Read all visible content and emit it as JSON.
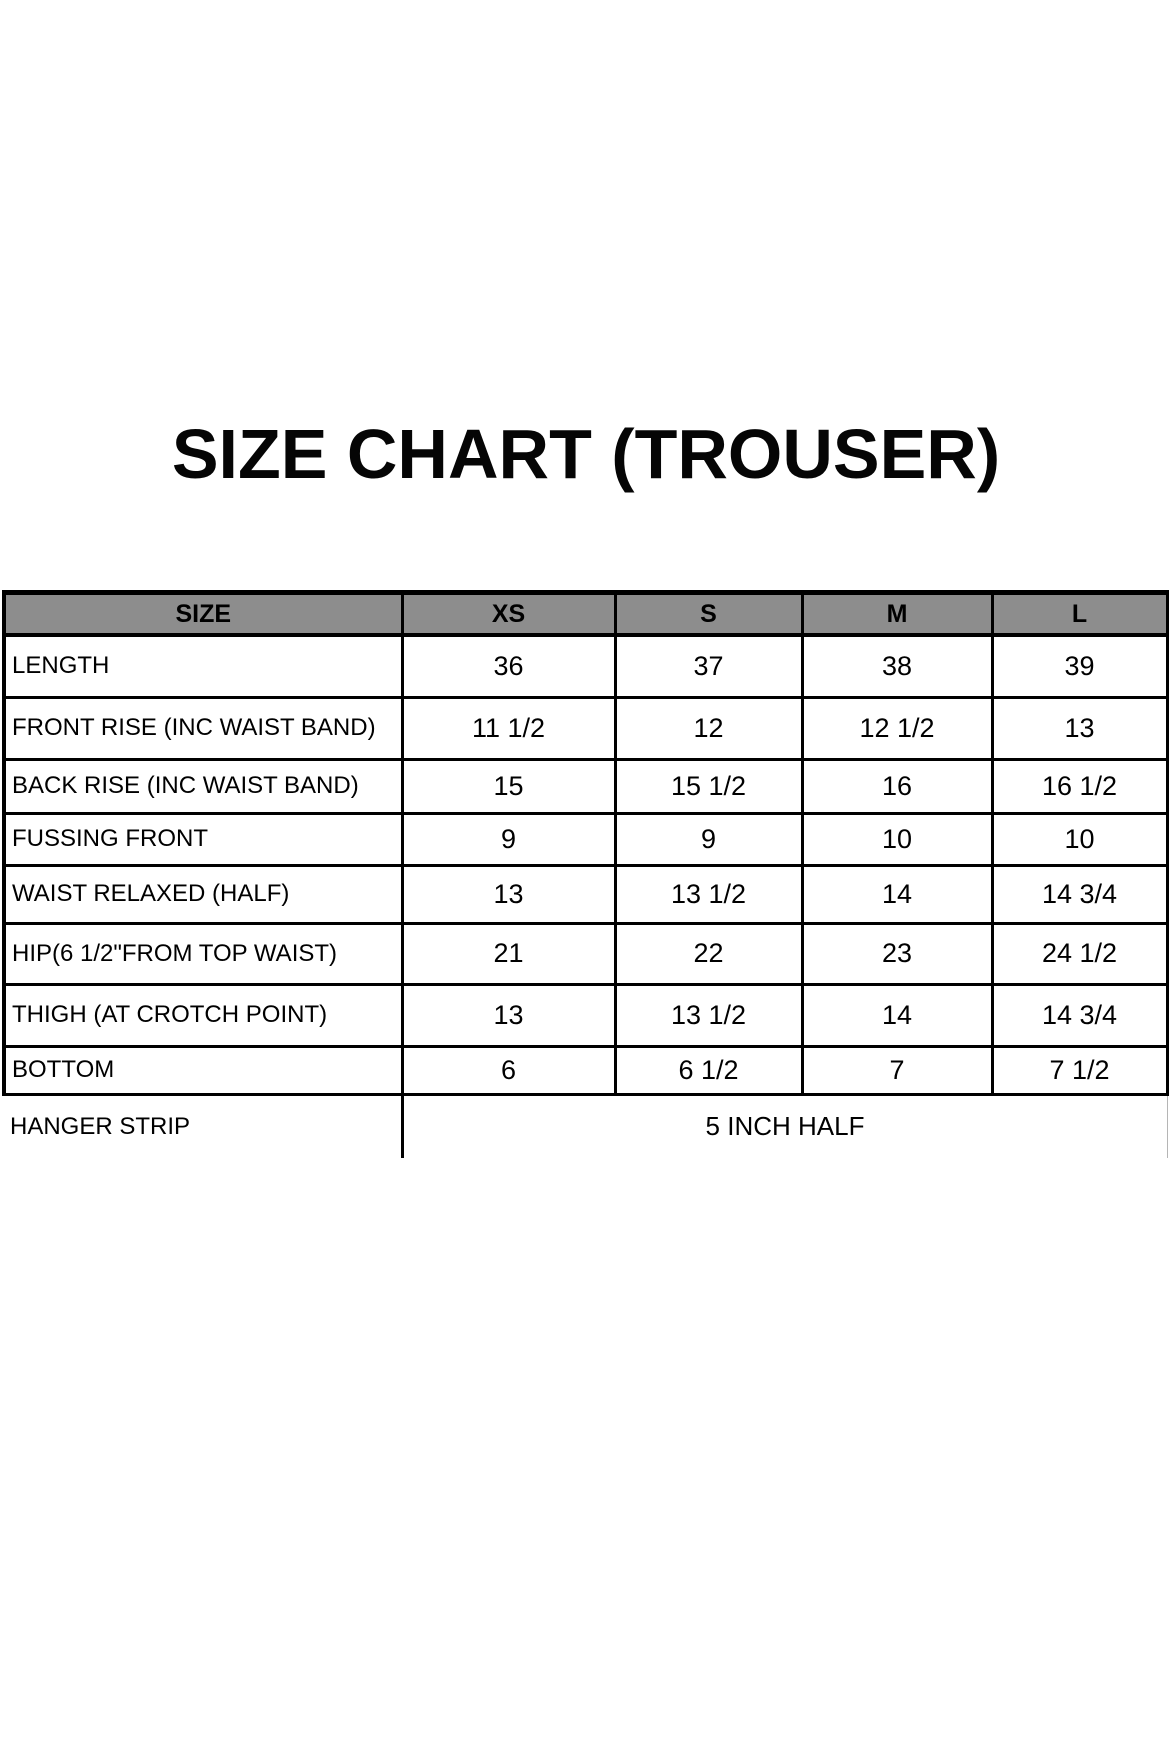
{
  "colors": {
    "background": "#ffffff",
    "header_bg": "#8d8d8d",
    "border": "#000000",
    "text": "#000000"
  },
  "chart_data": {
    "type": "table",
    "title": "SIZE CHART (TROUSER)",
    "legend_position": "none",
    "grid": "on",
    "columns": [
      "SIZE",
      "XS",
      "S",
      "M",
      "L"
    ],
    "rows": [
      {
        "label": "LENGTH",
        "values": [
          "36",
          "37",
          "38",
          "39"
        ]
      },
      {
        "label": "FRONT RISE (INC WAIST BAND)",
        "values": [
          "11 1/2",
          "12",
          "12 1/2",
          "13"
        ]
      },
      {
        "label": "BACK RISE (INC WAIST BAND)",
        "values": [
          "15",
          "15 1/2",
          "16",
          "16 1/2"
        ]
      },
      {
        "label": "FUSSING FRONT",
        "values": [
          "9",
          "9",
          "10",
          "10"
        ]
      },
      {
        "label": "WAIST RELAXED (HALF)",
        "values": [
          "13",
          "13 1/2",
          "14",
          "14 3/4"
        ]
      },
      {
        "label": "HIP(6 1/2\"FROM TOP WAIST)",
        "values": [
          "21",
          "22",
          "23",
          "24 1/2"
        ]
      },
      {
        "label": "THIGH (AT CROTCH POINT)",
        "values": [
          "13",
          "13 1/2",
          "14",
          "14 3/4"
        ]
      },
      {
        "label": "BOTTOM",
        "values": [
          "6",
          "6 1/2",
          "7",
          "7 1/2"
        ]
      }
    ],
    "merged_row": {
      "label": "HANGER STRIP",
      "value": "5 INCH HALF"
    }
  }
}
